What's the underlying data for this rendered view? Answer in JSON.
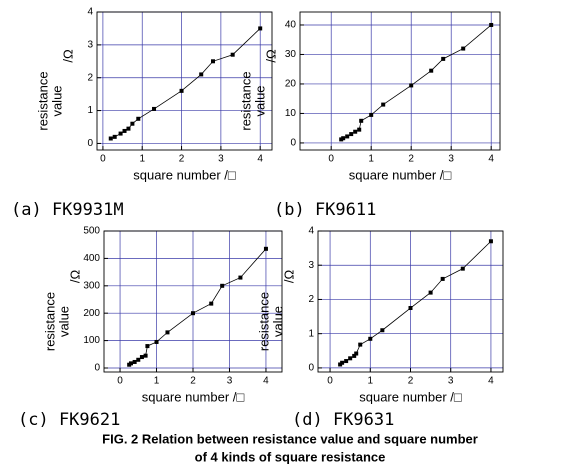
{
  "chart_data": [
    {
      "type": "line",
      "subtitle": "(a) FK9931M",
      "xlabel": "square number /□",
      "ylabel": [
        "resistance",
        "value"
      ],
      "yunit": "/Ω",
      "x": [
        0.2,
        0.3,
        0.45,
        0.55,
        0.65,
        0.75,
        0.9,
        1.3,
        2,
        2.5,
        2.8,
        3.3,
        4
      ],
      "series": [
        {
          "color": "#000000",
          "values": [
            0.15,
            0.2,
            0.3,
            0.38,
            0.45,
            0.6,
            0.75,
            1.05,
            1.6,
            2.1,
            2.5,
            2.7,
            3.5
          ]
        }
      ],
      "xlim": [
        -0.15,
        4.3
      ],
      "ylim": [
        -0.2,
        4
      ],
      "xticks": [
        0,
        1,
        2,
        3,
        4
      ],
      "yticks": [
        0,
        1,
        2,
        3,
        4
      ],
      "grid": true,
      "grid_color": "#3a3aa8"
    },
    {
      "type": "line",
      "subtitle": "(b) FK9611",
      "xlabel": "square number /□",
      "ylabel": [
        "resistance",
        "value"
      ],
      "yunit": "/Ω",
      "x": [
        0.25,
        0.3,
        0.4,
        0.5,
        0.6,
        0.7,
        0.75,
        1,
        1.3,
        2,
        2.5,
        2.8,
        3.3,
        4
      ],
      "series": [
        {
          "color": "#000000",
          "values": [
            1.2,
            1.6,
            2.2,
            3,
            3.8,
            4.5,
            7.5,
            9.5,
            13,
            19.5,
            24.5,
            28.5,
            32,
            40
          ]
        }
      ],
      "xlim": [
        -0.78,
        4.22
      ],
      "ylim": [
        -2.4,
        44.4
      ],
      "xticks": [
        0,
        1,
        2,
        3,
        4
      ],
      "yticks": [
        0,
        10,
        20,
        30,
        40
      ],
      "grid": true,
      "grid_color": "#3a3aa8"
    },
    {
      "type": "line",
      "subtitle": "(c) FK9621",
      "xlabel": "square number /□",
      "ylabel": [
        "resistance",
        "value"
      ],
      "yunit": "/Ω",
      "x": [
        0.25,
        0.3,
        0.4,
        0.5,
        0.6,
        0.7,
        0.75,
        1,
        1.3,
        2,
        2.5,
        2.8,
        3.3,
        4
      ],
      "series": [
        {
          "color": "#000000",
          "values": [
            12,
            17,
            22,
            30,
            40,
            45,
            80,
            95,
            130,
            200,
            235,
            300,
            330,
            435
          ]
        }
      ],
      "xlim": [
        -0.44,
        4.44
      ],
      "ylim": [
        -14.6,
        500
      ],
      "xticks": [
        0,
        1,
        2,
        3,
        4
      ],
      "yticks": [
        0,
        100,
        200,
        300,
        400,
        500
      ],
      "grid": true,
      "grid_color": "#3a3aa8"
    },
    {
      "type": "line",
      "subtitle": "(d) FK9631",
      "xlabel": "square number /□",
      "ylabel": [
        "resistance",
        "value"
      ],
      "yunit": "/Ω",
      "x": [
        0.25,
        0.3,
        0.4,
        0.5,
        0.6,
        0.65,
        0.75,
        1,
        1.3,
        2,
        2.5,
        2.8,
        3.3,
        4
      ],
      "series": [
        {
          "color": "#000000",
          "values": [
            0.1,
            0.15,
            0.2,
            0.28,
            0.35,
            0.42,
            0.68,
            0.85,
            1.1,
            1.75,
            2.2,
            2.6,
            2.9,
            3.7
          ]
        }
      ],
      "xlim": [
        -0.3,
        4.3
      ],
      "ylim": [
        -0.12,
        4
      ],
      "xticks": [
        0,
        1,
        2,
        3,
        4
      ],
      "yticks": [
        0,
        1,
        2,
        3,
        4
      ],
      "grid": true,
      "grid_color": "#3a3aa8"
    }
  ],
  "caption": [
    "FIG. 2 Relation between resistance value and square number",
    "of 4 kinds of square resistance"
  ]
}
